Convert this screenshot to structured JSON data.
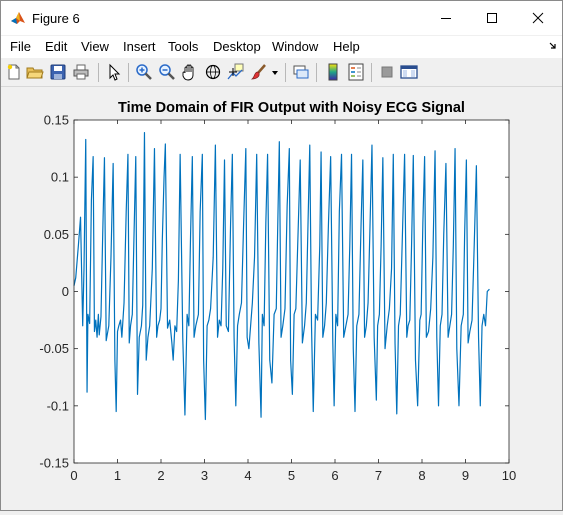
{
  "window": {
    "title": "Figure 6"
  },
  "menu": {
    "items": [
      "File",
      "Edit",
      "View",
      "Insert",
      "Tools",
      "Desktop",
      "Window",
      "Help"
    ]
  },
  "toolbar": {
    "icons": [
      "new-figure-icon",
      "open-file-icon",
      "save-icon",
      "print-icon",
      "edit-plot-arrow-icon",
      "zoom-in-icon",
      "zoom-out-icon",
      "pan-hand-icon",
      "rotate-3d-icon",
      "data-cursor-icon",
      "brush-icon",
      "brush-dropdown-icon",
      "link-plot-icon",
      "insert-colorbar-icon",
      "insert-legend-icon",
      "hide-plot-tools-icon",
      "show-plot-tools-icon"
    ]
  },
  "colors": {
    "line": "#0072bd",
    "axes_bg": "#ffffff",
    "figure_bg": "#f0f0f0"
  },
  "chart_data": {
    "type": "line",
    "title": "Time Domain of FIR Output with Noisy ECG Signal",
    "xlabel": "",
    "ylabel": "",
    "xlim": [
      0,
      10
    ],
    "ylim": [
      -0.15,
      0.15
    ],
    "xticks": [
      0,
      1,
      2,
      3,
      4,
      5,
      6,
      7,
      8,
      9,
      10
    ],
    "yticks": [
      -0.15,
      -0.1,
      -0.05,
      0,
      0.05,
      0.1,
      0.15
    ],
    "ytick_labels": [
      "-0.15",
      "-0.1",
      "-0.05",
      "0",
      "0.05",
      "0.1",
      "0.15"
    ],
    "grid": false,
    "box": true,
    "series": [
      {
        "x": [
          0.0,
          0.04,
          0.1,
          0.15,
          0.2,
          0.23,
          0.27,
          0.3,
          0.32,
          0.36,
          0.4,
          0.44,
          0.47,
          0.5,
          0.53,
          0.56,
          0.58,
          0.62,
          0.66,
          0.7,
          0.74,
          0.8,
          0.85,
          0.9,
          0.94,
          0.97,
          1.0,
          1.03,
          1.07,
          1.1,
          1.15,
          1.2,
          1.24,
          1.27,
          1.3,
          1.34,
          1.38,
          1.42,
          1.46,
          1.5,
          1.55,
          1.58,
          1.62,
          1.66,
          1.7,
          1.74,
          1.8,
          1.85,
          1.9,
          1.93,
          1.97,
          2.0,
          2.03,
          2.07,
          2.1,
          2.15,
          2.2,
          2.25,
          2.28,
          2.32,
          2.36,
          2.4,
          2.44,
          2.5,
          2.55,
          2.6,
          2.64,
          2.68,
          2.72,
          2.76,
          2.8,
          2.86,
          2.9,
          2.95,
          2.98,
          3.02,
          3.06,
          3.1,
          3.14,
          3.2,
          3.25,
          3.3,
          3.34,
          3.38,
          3.42,
          3.46,
          3.5,
          3.55,
          3.6,
          3.64,
          3.68,
          3.72,
          3.76,
          3.8,
          3.85,
          3.9,
          3.95,
          3.98,
          4.02,
          4.06,
          4.1,
          4.15,
          4.2,
          4.25,
          4.3,
          4.33,
          4.37,
          4.41,
          4.45,
          4.5,
          4.55,
          4.6,
          4.65,
          4.68,
          4.72,
          4.76,
          4.8,
          4.85,
          4.9,
          4.95,
          4.98,
          5.02,
          5.06,
          5.1,
          5.15,
          5.2,
          5.25,
          5.3,
          5.34,
          5.38,
          5.42,
          5.46,
          5.5,
          5.55,
          5.6,
          5.65,
          5.68,
          5.72,
          5.76,
          5.8,
          5.85,
          5.9,
          5.95,
          5.98,
          6.02,
          6.06,
          6.1,
          6.15,
          6.2,
          6.25,
          6.3,
          6.34,
          6.38,
          6.42,
          6.46,
          6.5,
          6.55,
          6.6,
          6.64,
          6.68,
          6.72,
          6.76,
          6.8,
          6.85,
          6.9,
          6.95,
          6.98,
          7.02,
          7.06,
          7.1,
          7.15,
          7.2,
          7.25,
          7.3,
          7.34,
          7.38,
          7.42,
          7.46,
          7.5,
          7.55,
          7.6,
          7.65,
          7.68,
          7.72,
          7.76,
          7.8,
          7.85,
          7.9,
          7.95,
          7.98,
          8.02,
          8.06,
          8.1,
          8.15,
          8.2,
          8.25,
          8.3,
          8.34,
          8.38,
          8.42,
          8.46,
          8.5,
          8.55,
          8.6,
          8.64,
          8.68,
          8.72,
          8.76,
          8.8,
          8.85,
          8.9,
          8.95,
          8.98,
          9.02,
          9.06,
          9.1,
          9.15,
          9.2,
          9.25,
          9.3,
          9.34,
          9.38,
          9.42,
          9.46,
          9.5,
          9.55
        ],
        "y": [
          0.005,
          0.012,
          0.04,
          0.065,
          -0.03,
          0.02,
          0.133,
          -0.088,
          -0.02,
          -0.028,
          0.08,
          0.118,
          -0.035,
          -0.025,
          -0.04,
          -0.02,
          -0.038,
          -0.022,
          0.05,
          0.117,
          -0.043,
          -0.03,
          0.03,
          0.112,
          -0.06,
          -0.105,
          -0.035,
          -0.03,
          -0.025,
          -0.04,
          -0.01,
          0.07,
          0.12,
          -0.045,
          -0.03,
          -0.02,
          0.05,
          0.118,
          -0.09,
          -0.04,
          -0.03,
          -0.012,
          0.139,
          -0.06,
          -0.04,
          -0.03,
          0.02,
          0.125,
          -0.04,
          -0.03,
          -0.025,
          -0.015,
          0.045,
          0.1,
          0.129,
          -0.032,
          -0.025,
          -0.045,
          -0.06,
          -0.03,
          -0.035,
          0.01,
          0.12,
          -0.04,
          -0.108,
          -0.02,
          -0.03,
          0.05,
          0.118,
          -0.04,
          -0.03,
          -0.02,
          0.07,
          0.12,
          -0.06,
          -0.112,
          -0.03,
          -0.025,
          -0.015,
          0.03,
          0.128,
          -0.04,
          -0.025,
          -0.03,
          0.02,
          0.115,
          -0.03,
          -0.035,
          0.06,
          0.12,
          -0.04,
          -0.1,
          -0.03,
          -0.02,
          -0.01,
          0.06,
          0.125,
          -0.04,
          -0.05,
          -0.03,
          -0.01,
          0.03,
          0.12,
          -0.045,
          -0.11,
          -0.02,
          -0.03,
          0.06,
          0.12,
          -0.06,
          -0.08,
          -0.02,
          -0.015,
          0.05,
          0.131,
          -0.04,
          -0.03,
          -0.015,
          0.075,
          0.125,
          -0.06,
          -0.09,
          -0.02,
          -0.015,
          0.05,
          0.115,
          -0.045,
          -0.03,
          -0.01,
          0.06,
          0.128,
          -0.03,
          -0.105,
          -0.02,
          -0.025,
          0.04,
          0.122,
          -0.04,
          -0.03,
          -0.01,
          0.06,
          0.118,
          -0.045,
          -0.1,
          -0.02,
          -0.03,
          0.07,
          0.12,
          -0.04,
          -0.03,
          -0.02,
          0.04,
          0.12,
          -0.05,
          -0.105,
          -0.03,
          -0.02,
          0.06,
          0.115,
          -0.04,
          -0.03,
          -0.01,
          0.05,
          0.128,
          -0.04,
          -0.095,
          -0.03,
          -0.02,
          0.04,
          0.117,
          -0.05,
          -0.03,
          -0.015,
          0.02,
          0.12,
          -0.045,
          -0.107,
          -0.03,
          -0.02,
          0.05,
          0.12,
          -0.04,
          -0.03,
          -0.025,
          0.04,
          0.119,
          -0.06,
          -0.1,
          -0.025,
          -0.02,
          0.06,
          0.118,
          -0.04,
          -0.035,
          -0.015,
          0.03,
          0.123,
          -0.04,
          -0.1,
          -0.03,
          -0.02,
          0.05,
          0.112,
          -0.04,
          -0.03,
          -0.02,
          0.04,
          0.125,
          -0.05,
          -0.1,
          -0.03,
          -0.02,
          0.05,
          0.115,
          -0.045,
          -0.035,
          -0.025,
          0.04,
          0.11,
          -0.04,
          -0.1,
          -0.03,
          -0.02,
          -0.03,
          0.0,
          0.002
        ]
      }
    ]
  }
}
